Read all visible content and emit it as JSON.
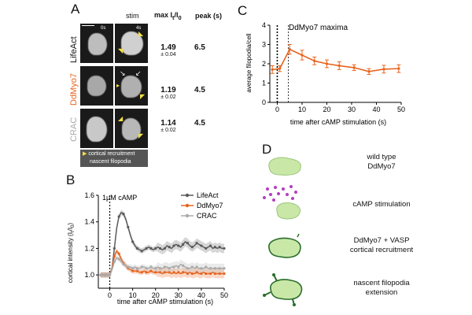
{
  "panelA": {
    "letter": "A",
    "col_stim": "stim",
    "col_max": "max I",
    "col_max_sub1": "t",
    "col_max_div": "/I",
    "col_max_sub2": "0",
    "col_peak": "peak (s)",
    "time0": "0s",
    "time4": "4s",
    "rows": [
      {
        "label": "LifeAct",
        "max": "1.49",
        "err": "± 0.04",
        "peak": "6.5",
        "color": "#888888"
      },
      {
        "label": "DdMyo7",
        "max": "1.19",
        "err": "± 0.02",
        "peak": "4.5",
        "color": "#e8641e"
      },
      {
        "label": "CRAC",
        "max": "1.14",
        "err": "± 0.02",
        "peak": "4.5",
        "color": "#aaaaaa"
      }
    ],
    "legend_1": "cortical recruitment",
    "legend_2": "nascent filopodia"
  },
  "panelB": {
    "letter": "B",
    "annotation": "1μM cAMP",
    "chart_data": {
      "type": "line",
      "title": "",
      "xlabel": "time after cAMP stimulation (s)",
      "ylabel": "cortical intensity (I",
      "ylabel_sub1": "t",
      "ylabel_mid": "/I",
      "ylabel_sub2": "0",
      "ylabel_end": ")",
      "xlim": [
        -5,
        50
      ],
      "ylim": [
        0.9,
        1.6
      ],
      "xticks": [
        0,
        10,
        20,
        30,
        40,
        50
      ],
      "yticks": [
        1.0,
        1.2,
        1.4,
        1.6
      ],
      "yticklabels": [
        "1.0",
        "1.2",
        "1.4",
        "1.6"
      ],
      "x": [
        -4,
        -3,
        -2,
        -1,
        0,
        1,
        2,
        3,
        4,
        5,
        6,
        7,
        8,
        9,
        10,
        11,
        12,
        13,
        14,
        15,
        16,
        17,
        18,
        19,
        20,
        21,
        22,
        23,
        24,
        25,
        26,
        27,
        28,
        29,
        30,
        31,
        32,
        33,
        34,
        35,
        36,
        37,
        38,
        39,
        40,
        41,
        42,
        43,
        44,
        45,
        46,
        47,
        48,
        49,
        50
      ],
      "series": [
        {
          "name": "LifeAct",
          "color": "#5a5a5a",
          "values": [
            1.0,
            1.0,
            1.0,
            1.0,
            1.0,
            1.05,
            1.2,
            1.35,
            1.44,
            1.47,
            1.46,
            1.42,
            1.36,
            1.3,
            1.25,
            1.22,
            1.2,
            1.19,
            1.18,
            1.19,
            1.2,
            1.21,
            1.2,
            1.19,
            1.2,
            1.21,
            1.2,
            1.19,
            1.2,
            1.22,
            1.21,
            1.2,
            1.22,
            1.23,
            1.22,
            1.21,
            1.23,
            1.25,
            1.24,
            1.22,
            1.21,
            1.22,
            1.24,
            1.23,
            1.22,
            1.21,
            1.2,
            1.21,
            1.22,
            1.2,
            1.21,
            1.2,
            1.21,
            1.2,
            1.2
          ]
        },
        {
          "name": "DdMyo7",
          "color": "#e8641e",
          "values": [
            1.0,
            1.0,
            1.0,
            1.0,
            1.0,
            1.05,
            1.14,
            1.18,
            1.16,
            1.12,
            1.09,
            1.07,
            1.05,
            1.04,
            1.03,
            1.03,
            1.03,
            1.02,
            1.02,
            1.03,
            1.02,
            1.02,
            1.03,
            1.02,
            1.02,
            1.02,
            1.02,
            1.01,
            1.02,
            1.02,
            1.02,
            1.01,
            1.02,
            1.01,
            1.02,
            1.01,
            1.02,
            1.02,
            1.01,
            1.02,
            1.01,
            1.01,
            1.02,
            1.01,
            1.01,
            1.02,
            1.01,
            1.01,
            1.01,
            1.02,
            1.01,
            1.01,
            1.01,
            1.01,
            1.01
          ]
        },
        {
          "name": "CRAC",
          "color": "#aaaaaa",
          "values": [
            1.0,
            1.0,
            1.0,
            1.0,
            1.0,
            1.04,
            1.1,
            1.13,
            1.12,
            1.1,
            1.08,
            1.07,
            1.06,
            1.06,
            1.05,
            1.06,
            1.05,
            1.05,
            1.06,
            1.06,
            1.05,
            1.05,
            1.06,
            1.05,
            1.05,
            1.06,
            1.05,
            1.05,
            1.06,
            1.06,
            1.05,
            1.06,
            1.06,
            1.07,
            1.06,
            1.08,
            1.07,
            1.06,
            1.05,
            1.05,
            1.06,
            1.05,
            1.06,
            1.05,
            1.05,
            1.05,
            1.06,
            1.05,
            1.05,
            1.05,
            1.05,
            1.05,
            1.05,
            1.05,
            1.05
          ]
        }
      ],
      "legend_position": "top-right"
    }
  },
  "panelC": {
    "letter": "C",
    "annotation": "DdMyo7 maxima",
    "chart_data": {
      "type": "line",
      "title": "",
      "xlabel": "time after cAMP stimulation (s)",
      "ylabel": "average filopodia/cell",
      "xlim": [
        -3,
        50
      ],
      "ylim": [
        0,
        4
      ],
      "xticks": [
        0,
        10,
        20,
        30,
        40,
        50
      ],
      "yticks": [
        0,
        1,
        2,
        3,
        4
      ],
      "x": [
        -2,
        1,
        5,
        10,
        15,
        20,
        25,
        31,
        37,
        43,
        49
      ],
      "values": [
        1.7,
        1.75,
        2.75,
        2.45,
        2.15,
        2.0,
        1.9,
        1.8,
        1.6,
        1.72,
        1.75
      ],
      "errors": [
        0.2,
        0.15,
        0.25,
        0.25,
        0.2,
        0.2,
        0.2,
        0.15,
        0.15,
        0.2,
        0.2
      ],
      "color": "#e8641e"
    }
  },
  "panelD": {
    "letter": "D",
    "steps": [
      {
        "line1": "wild type",
        "line2": "DdMyo7"
      },
      {
        "line1": "cAMP stimulation",
        "line2": ""
      },
      {
        "line1": "DdMyo7 + VASP",
        "line2": "cortical recruitment"
      },
      {
        "line1": "nascent filopodia",
        "line2": "extension"
      }
    ]
  }
}
